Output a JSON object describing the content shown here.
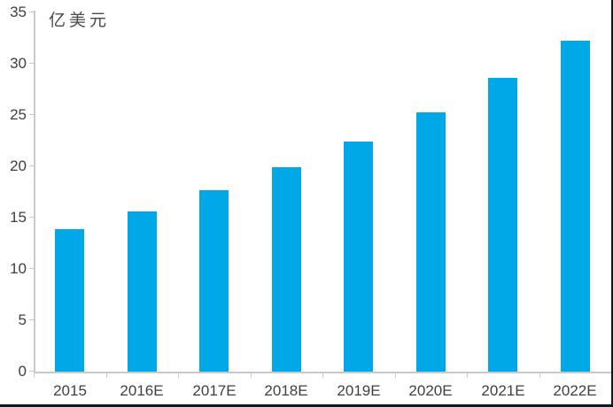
{
  "chart_data": {
    "type": "bar",
    "title": "亿美元",
    "categories": [
      "2015",
      "2016E",
      "2017E",
      "2018E",
      "2019E",
      "2020E",
      "2021E",
      "2022E"
    ],
    "values": [
      13.9,
      15.6,
      17.7,
      19.9,
      22.4,
      25.3,
      28.6,
      32.2
    ],
    "xlabel": "",
    "ylabel": "亿美元",
    "ylim": [
      0,
      35
    ],
    "ytick_step": 5,
    "ytick_labels": [
      "0",
      "5",
      "10",
      "15",
      "20",
      "25",
      "30",
      "35"
    ],
    "grid": "off",
    "legend": "none",
    "colors": {
      "bar": "#00a8e8",
      "axis": "#c9c9c9",
      "text": "#404040",
      "border": "#15151f",
      "background": "#ffffff"
    }
  }
}
